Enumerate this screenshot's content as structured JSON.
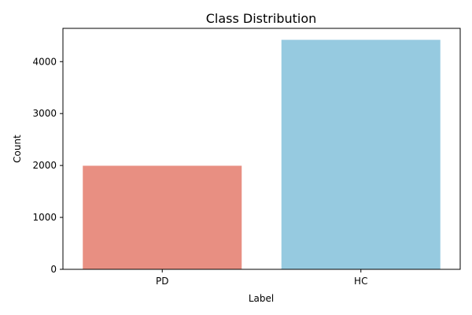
{
  "chart_data": {
    "type": "bar",
    "title": "Class Distribution",
    "xlabel": "Label",
    "ylabel": "Count",
    "categories": [
      "PD",
      "HC"
    ],
    "values": [
      1995,
      4420
    ],
    "colors": [
      "#e88f82",
      "#96cae0"
    ],
    "ylim": [
      0,
      4641
    ],
    "yticks": [
      0,
      1000,
      2000,
      3000,
      4000
    ],
    "grid": false,
    "legend": "none"
  }
}
